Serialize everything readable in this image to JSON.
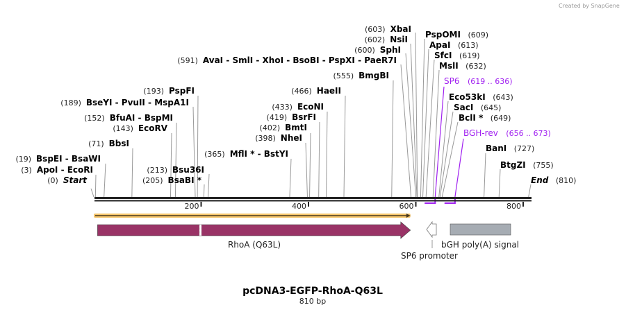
{
  "credit": "Created by SnapGene",
  "map": {
    "title": "pcDNA3-EGFP-RhoA-Q63L",
    "length_label": "810 bp",
    "length_bp": 810,
    "ticks": [
      {
        "bp": 200,
        "label": "200"
      },
      {
        "bp": 400,
        "label": "400"
      },
      {
        "bp": 600,
        "label": "600"
      },
      {
        "bp": 800,
        "label": "800"
      }
    ],
    "sites": [
      {
        "pos": "(0)",
        "bp": 0,
        "name": "Start",
        "italic": true
      },
      {
        "pos": "(3)",
        "bp": 3,
        "name": "ApoI  - EcoRI"
      },
      {
        "pos": "(19)",
        "bp": 19,
        "name": "BspEI  - BsaWI"
      },
      {
        "pos": "(71)",
        "bp": 71,
        "name": "BbsI"
      },
      {
        "pos": "(143)",
        "bp": 143,
        "name": "EcoRV"
      },
      {
        "pos": "(152)",
        "bp": 152,
        "name": "BfuAI  - BspMI"
      },
      {
        "pos": "(189)",
        "bp": 189,
        "name": "BseYI  - PvuII  - MspA1I"
      },
      {
        "pos": "(193)",
        "bp": 193,
        "name": "PspFI"
      },
      {
        "pos": "(205)",
        "bp": 205,
        "name": "BsaBI *"
      },
      {
        "pos": "(213)",
        "bp": 213,
        "name": "Bsu36I"
      },
      {
        "pos": "(365)",
        "bp": 365,
        "name": "MflI * - BstYI"
      },
      {
        "pos": "(398)",
        "bp": 398,
        "name": "NheI"
      },
      {
        "pos": "(402)",
        "bp": 402,
        "name": "BmtI"
      },
      {
        "pos": "(419)",
        "bp": 419,
        "name": "BsrFI"
      },
      {
        "pos": "(433)",
        "bp": 433,
        "name": "EcoNI"
      },
      {
        "pos": "(466)",
        "bp": 466,
        "name": "HaeII"
      },
      {
        "pos": "(555)",
        "bp": 555,
        "name": "BmgBI"
      },
      {
        "pos": "(591)",
        "bp": 591,
        "name": "AvaI  - SmlI  - XhoI  - BsoBI  - PspXI  - PaeR7I"
      },
      {
        "pos": "(600)",
        "bp": 600,
        "name": "SphI"
      },
      {
        "pos": "(602)",
        "bp": 602,
        "name": "NsiI"
      },
      {
        "pos": "(603)",
        "bp": 603,
        "name": "XbaI"
      },
      {
        "pos": "(609)",
        "bp": 609,
        "name": "PspOMI"
      },
      {
        "pos": "(613)",
        "bp": 613,
        "name": "ApaI"
      },
      {
        "pos": "(619)",
        "bp": 619,
        "name": "SfcI"
      },
      {
        "pos": "(632)",
        "bp": 632,
        "name": "MslI"
      },
      {
        "pos": "(643)",
        "bp": 643,
        "name": "Eco53kI"
      },
      {
        "pos": "(645)",
        "bp": 645,
        "name": "SacI"
      },
      {
        "pos": "(649)",
        "bp": 649,
        "name": "BclI *"
      },
      {
        "pos": "(727)",
        "bp": 727,
        "name": "BanI"
      },
      {
        "pos": "(755)",
        "bp": 755,
        "name": "BtgZI"
      },
      {
        "pos": "(810)",
        "bp": 810,
        "name": "End",
        "italic": true
      }
    ],
    "primers": [
      {
        "name": "SP6",
        "range": "(619 .. 636)",
        "start": 619,
        "end": 636,
        "direction": "reverse"
      },
      {
        "name": "BGH-rev",
        "range": "(656 .. 673)",
        "start": 656,
        "end": 673,
        "direction": "reverse"
      }
    ],
    "features": [
      {
        "name": "RhoA (Q63L)",
        "start": 7,
        "end": 590,
        "color": "#993366",
        "direction": "forward"
      },
      {
        "name": "SP6 promoter",
        "start": 619,
        "end": 636,
        "color": "#ffffff",
        "direction": "reverse"
      },
      {
        "name": "bGH poly(A) signal",
        "start": 662,
        "end": 775,
        "color": "#a6acb3",
        "direction": "none"
      }
    ],
    "orf": {
      "start": 0,
      "end": 590,
      "color": "#f5c56b"
    },
    "primer_color": "#a020f0"
  }
}
